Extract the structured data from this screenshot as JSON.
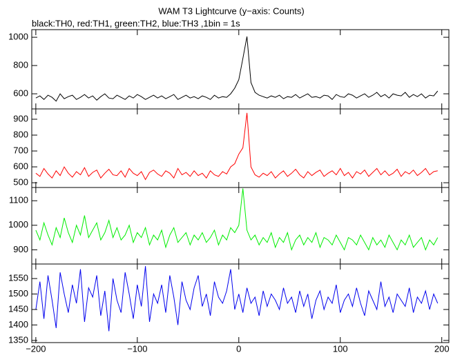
{
  "chart_data": [
    {
      "type": "line",
      "title": "WAM T3 Lightcurve (y−axis: Counts)",
      "subtitle": "black:TH0, red:TH1, green:TH2, blue:TH3 ,1bin = 1s",
      "color": "#000000",
      "x": [
        -200,
        -196,
        -192,
        -188,
        -184,
        -180,
        -176,
        -172,
        -168,
        -164,
        -160,
        -156,
        -152,
        -148,
        -144,
        -140,
        -136,
        -132,
        -128,
        -124,
        -120,
        -116,
        -112,
        -108,
        -104,
        -100,
        -96,
        -92,
        -88,
        -84,
        -80,
        -76,
        -72,
        -68,
        -64,
        -60,
        -56,
        -52,
        -48,
        -44,
        -40,
        -36,
        -32,
        -28,
        -24,
        -20,
        -16,
        -12,
        -8,
        -4,
        0,
        4,
        8,
        12,
        16,
        20,
        24,
        28,
        32,
        36,
        40,
        44,
        48,
        52,
        56,
        60,
        64,
        68,
        72,
        76,
        80,
        84,
        88,
        92,
        96,
        100,
        104,
        108,
        112,
        116,
        120,
        124,
        128,
        132,
        136,
        140,
        144,
        148,
        152,
        156,
        160,
        164,
        168,
        172,
        176,
        180,
        184,
        188,
        192,
        196
      ],
      "values": [
        570,
        585,
        560,
        590,
        575,
        548,
        600,
        565,
        580,
        590,
        560,
        575,
        595,
        570,
        585,
        555,
        580,
        600,
        570,
        565,
        590,
        575,
        560,
        585,
        570,
        595,
        580,
        560,
        575,
        590,
        570,
        585,
        565,
        580,
        595,
        560,
        575,
        590,
        570,
        580,
        565,
        585,
        575,
        560,
        590,
        570,
        580,
        575,
        600,
        640,
        700,
        850,
        1005,
        680,
        610,
        590,
        580,
        570,
        585,
        575,
        590,
        565,
        580,
        575,
        595,
        570,
        585,
        600,
        575,
        580,
        570,
        590,
        585,
        560,
        595,
        580,
        575,
        600,
        590,
        570,
        585,
        600,
        575,
        590,
        610,
        580,
        595,
        570,
        600,
        590,
        585,
        610,
        575,
        595,
        580,
        600,
        570,
        590,
        585,
        620
      ],
      "xlim": [
        -204,
        207
      ],
      "ylim": [
        493,
        1054
      ],
      "yticks": [
        600,
        800,
        1000
      ]
    },
    {
      "type": "line",
      "color": "#ff0000",
      "x": [
        -200,
        -196,
        -192,
        -188,
        -184,
        -180,
        -176,
        -172,
        -168,
        -164,
        -160,
        -156,
        -152,
        -148,
        -144,
        -140,
        -136,
        -132,
        -128,
        -124,
        -120,
        -116,
        -112,
        -108,
        -104,
        -100,
        -96,
        -92,
        -88,
        -84,
        -80,
        -76,
        -72,
        -68,
        -64,
        -60,
        -56,
        -52,
        -48,
        -44,
        -40,
        -36,
        -32,
        -28,
        -24,
        -20,
        -16,
        -12,
        -8,
        -4,
        0,
        4,
        8,
        12,
        16,
        20,
        24,
        28,
        32,
        36,
        40,
        44,
        48,
        52,
        56,
        60,
        64,
        68,
        72,
        76,
        80,
        84,
        88,
        92,
        96,
        100,
        104,
        108,
        112,
        116,
        120,
        124,
        128,
        132,
        136,
        140,
        144,
        148,
        152,
        156,
        160,
        164,
        168,
        172,
        176,
        180,
        184,
        188,
        192,
        196
      ],
      "values": [
        560,
        540,
        590,
        555,
        530,
        575,
        545,
        600,
        560,
        535,
        570,
        550,
        595,
        540,
        565,
        580,
        530,
        560,
        585,
        550,
        545,
        575,
        535,
        590,
        560,
        545,
        570,
        520,
        565,
        580,
        555,
        540,
        575,
        560,
        530,
        590,
        550,
        565,
        540,
        575,
        545,
        560,
        530,
        575,
        550,
        540,
        570,
        555,
        600,
        620,
        680,
        720,
        940,
        600,
        550,
        535,
        560,
        545,
        570,
        530,
        555,
        575,
        540,
        560,
        585,
        550,
        530,
        570,
        545,
        565,
        580,
        540,
        560,
        575,
        550,
        590,
        545,
        565,
        530,
        570,
        555,
        580,
        540,
        565,
        590,
        550,
        575,
        545,
        560,
        585,
        540,
        570,
        555,
        580,
        545,
        565,
        590,
        550,
        570,
        575
      ],
      "xlim": [
        -204,
        207
      ],
      "ylim": [
        470,
        965
      ],
      "yticks": [
        500,
        600,
        700,
        800,
        900
      ]
    },
    {
      "type": "line",
      "color": "#00ee00",
      "x": [
        -200,
        -196,
        -192,
        -188,
        -184,
        -180,
        -176,
        -172,
        -168,
        -164,
        -160,
        -156,
        -152,
        -148,
        -144,
        -140,
        -136,
        -132,
        -128,
        -124,
        -120,
        -116,
        -112,
        -108,
        -104,
        -100,
        -96,
        -92,
        -88,
        -84,
        -80,
        -76,
        -72,
        -68,
        -64,
        -60,
        -56,
        -52,
        -48,
        -44,
        -40,
        -36,
        -32,
        -28,
        -24,
        -20,
        -16,
        -12,
        -8,
        -4,
        0,
        4,
        8,
        12,
        16,
        20,
        24,
        28,
        32,
        36,
        40,
        44,
        48,
        52,
        56,
        60,
        64,
        68,
        72,
        76,
        80,
        84,
        88,
        92,
        96,
        100,
        104,
        108,
        112,
        116,
        120,
        124,
        128,
        132,
        136,
        140,
        144,
        148,
        152,
        156,
        160,
        164,
        168,
        172,
        176,
        180,
        184,
        188,
        192,
        196
      ],
      "values": [
        980,
        940,
        1010,
        960,
        920,
        990,
        950,
        1030,
        970,
        930,
        1000,
        960,
        1040,
        950,
        980,
        1010,
        940,
        970,
        1020,
        950,
        990,
        940,
        960,
        1000,
        930,
        970,
        950,
        990,
        920,
        960,
        940,
        980,
        910,
        960,
        990,
        930,
        950,
        970,
        920,
        960,
        940,
        970,
        930,
        950,
        980,
        920,
        960,
        940,
        990,
        970,
        1000,
        1150,
        980,
        940,
        960,
        920,
        950,
        930,
        970,
        910,
        950,
        930,
        970,
        900,
        940,
        960,
        920,
        950,
        930,
        970,
        910,
        950,
        940,
        920,
        960,
        930,
        900,
        950,
        940,
        920,
        960,
        930,
        900,
        950,
        920,
        940,
        910,
        960,
        930,
        900,
        940,
        920,
        960,
        910,
        930,
        950,
        900,
        940,
        920,
        950
      ],
      "xlim": [
        -204,
        207
      ],
      "ylim": [
        842,
        1154
      ],
      "yticks": [
        900,
        1000,
        1100
      ]
    },
    {
      "type": "line",
      "color": "#0000ee",
      "x": [
        -200,
        -196,
        -192,
        -188,
        -184,
        -180,
        -176,
        -172,
        -168,
        -164,
        -160,
        -156,
        -152,
        -148,
        -144,
        -140,
        -136,
        -132,
        -128,
        -124,
        -120,
        -116,
        -112,
        -108,
        -104,
        -100,
        -96,
        -92,
        -88,
        -84,
        -80,
        -76,
        -72,
        -68,
        -64,
        -60,
        -56,
        -52,
        -48,
        -44,
        -40,
        -36,
        -32,
        -28,
        -24,
        -20,
        -16,
        -12,
        -8,
        -4,
        0,
        4,
        8,
        12,
        16,
        20,
        24,
        28,
        32,
        36,
        40,
        44,
        48,
        52,
        56,
        60,
        64,
        68,
        72,
        76,
        80,
        84,
        88,
        92,
        96,
        100,
        104,
        108,
        112,
        116,
        120,
        124,
        128,
        132,
        136,
        140,
        144,
        148,
        152,
        156,
        160,
        164,
        168,
        172,
        176,
        180,
        184,
        188,
        192,
        196
      ],
      "values": [
        1450,
        1540,
        1420,
        1560,
        1480,
        1390,
        1570,
        1500,
        1440,
        1530,
        1470,
        1580,
        1410,
        1520,
        1490,
        1560,
        1430,
        1510,
        1380,
        1550,
        1480,
        1440,
        1570,
        1500,
        1420,
        1530,
        1460,
        1590,
        1410,
        1500,
        1470,
        1530,
        1440,
        1560,
        1490,
        1400,
        1540,
        1480,
        1450,
        1520,
        1560,
        1460,
        1500,
        1430,
        1540,
        1490,
        1470,
        1510,
        1580,
        1450,
        1500,
        1440,
        1520,
        1470,
        1490,
        1430,
        1510,
        1460,
        1500,
        1480,
        1450,
        1520,
        1470,
        1490,
        1440,
        1510,
        1460,
        1500,
        1420,
        1480,
        1510,
        1450,
        1490,
        1470,
        1530,
        1440,
        1480,
        1500,
        1460,
        1520,
        1470,
        1430,
        1510,
        1480,
        1450,
        1540,
        1460,
        1490,
        1440,
        1500,
        1480,
        1460,
        1520,
        1440,
        1490,
        1470,
        1510,
        1450,
        1500,
        1470
      ],
      "xlim": [
        -204,
        207
      ],
      "ylim": [
        1343,
        1597
      ],
      "yticks": [
        1350,
        1400,
        1450,
        1500,
        1550
      ],
      "xticks": [
        {
          "value": -200,
          "label": "−200"
        },
        {
          "value": -100,
          "label": "−100"
        },
        0,
        100,
        200
      ]
    }
  ]
}
